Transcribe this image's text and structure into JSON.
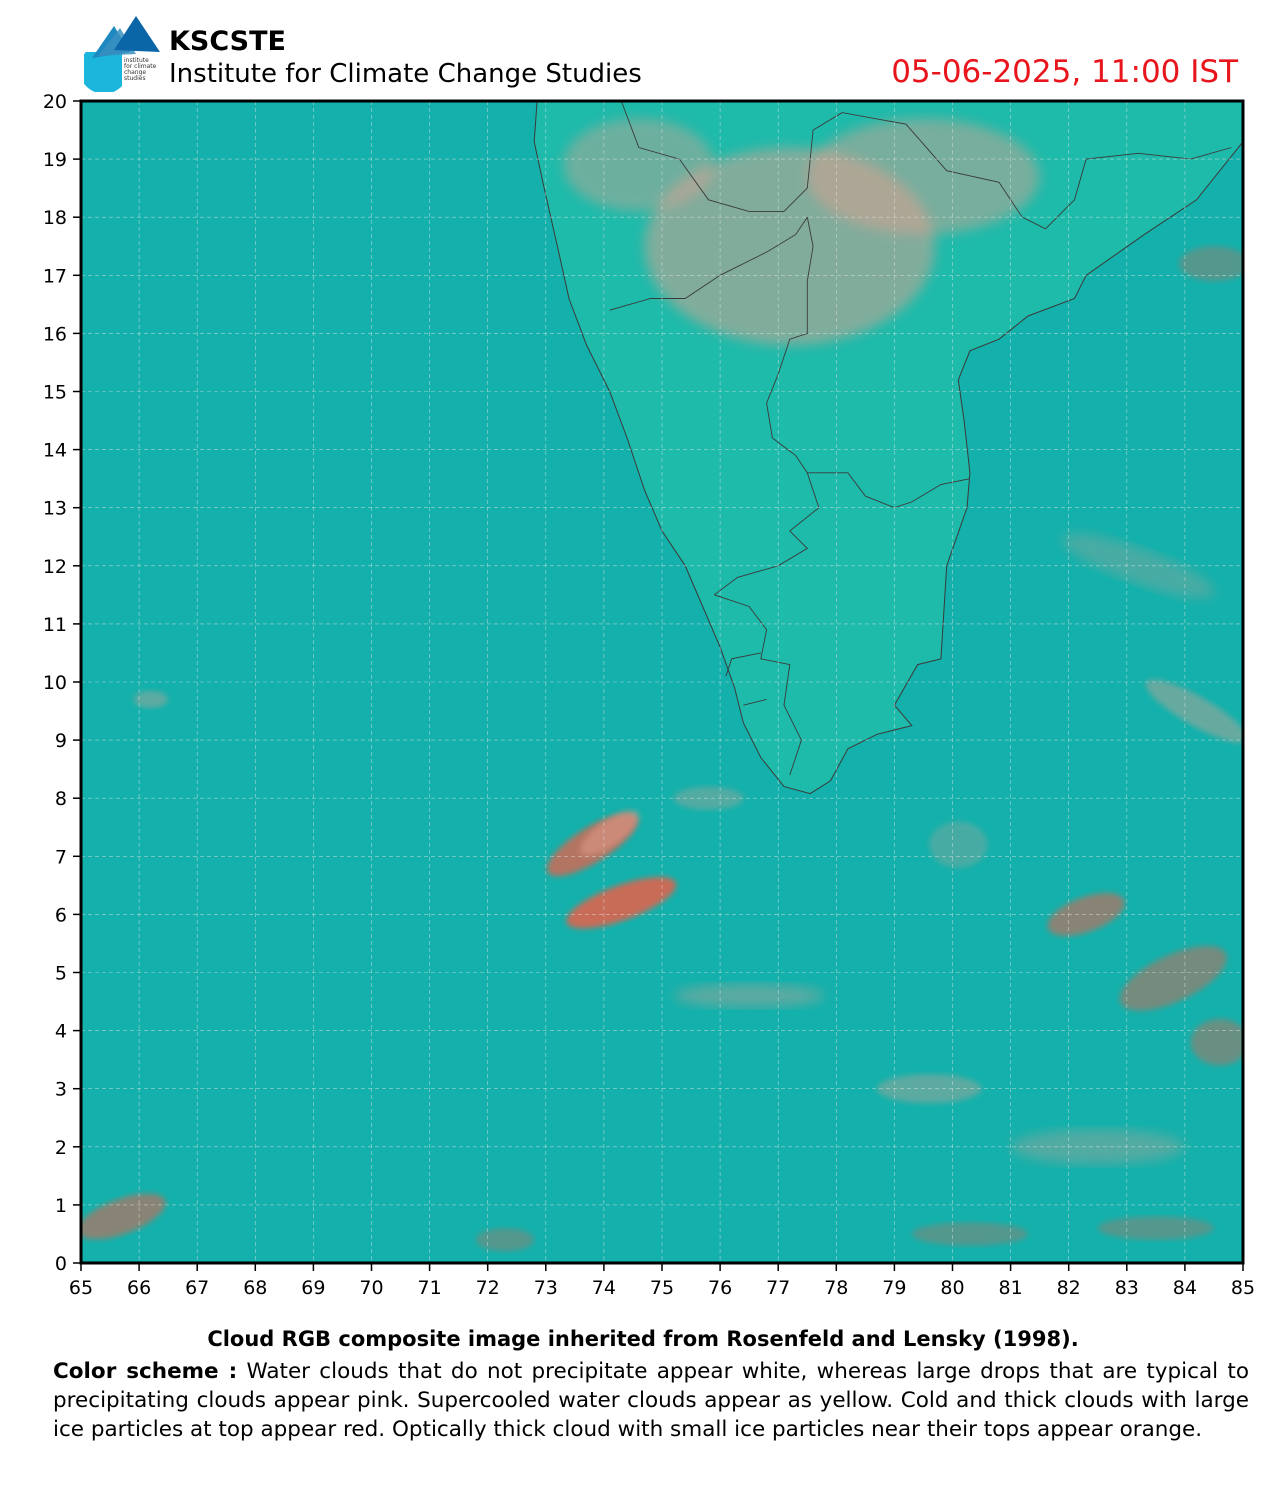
{
  "header": {
    "org_name": "KSCSTE",
    "org_sub": "Institute for Climate Change Studies",
    "logo_text": [
      "institute",
      "for climate",
      "change",
      "studies"
    ],
    "timestamp": "05-06-2025, 11:00 IST"
  },
  "map": {
    "lon_range": [
      65,
      85
    ],
    "lat_range": [
      0,
      20
    ],
    "x_ticks": [
      "65",
      "66",
      "67",
      "68",
      "69",
      "70",
      "71",
      "72",
      "73",
      "74",
      "75",
      "76",
      "77",
      "78",
      "79",
      "80",
      "81",
      "82",
      "83",
      "84",
      "85"
    ],
    "y_ticks": [
      "0",
      "1",
      "2",
      "3",
      "4",
      "5",
      "6",
      "7",
      "8",
      "9",
      "10",
      "11",
      "12",
      "13",
      "14",
      "15",
      "16",
      "17",
      "18",
      "19",
      "20"
    ],
    "grid": true,
    "colors": {
      "ocean": "#14b0ab",
      "land": "#1ebaaa",
      "pink_cloud": "#e4a08f",
      "red_cloud": "#e8604a",
      "boundary": "#3a3a3a",
      "grid": "#e6e6e6"
    },
    "clouds": [
      {
        "lon": 77.2,
        "lat": 17.5,
        "rx": 2.5,
        "ry": 1.7,
        "type": "pink",
        "opacity": 0.5
      },
      {
        "lon": 79.5,
        "lat": 18.7,
        "rx": 2.0,
        "ry": 1.0,
        "type": "pink",
        "opacity": 0.45
      },
      {
        "lon": 74.6,
        "lat": 18.9,
        "rx": 1.3,
        "ry": 0.8,
        "type": "pink",
        "opacity": 0.4
      },
      {
        "lon": 73.8,
        "lat": 7.2,
        "rx": 0.9,
        "ry": 0.3,
        "type": "red",
        "opacity": 0.75,
        "rot": 32
      },
      {
        "lon": 74.3,
        "lat": 6.2,
        "rx": 1.0,
        "ry": 0.3,
        "type": "red",
        "opacity": 0.85,
        "rot": 20
      },
      {
        "lon": 74.1,
        "lat": 7.4,
        "rx": 0.6,
        "ry": 0.22,
        "type": "pink",
        "opacity": 0.5,
        "rot": 35
      },
      {
        "lon": 82.3,
        "lat": 6.0,
        "rx": 0.7,
        "ry": 0.3,
        "type": "red",
        "opacity": 0.55,
        "rot": 20
      },
      {
        "lon": 83.8,
        "lat": 4.9,
        "rx": 1.0,
        "ry": 0.4,
        "type": "red",
        "opacity": 0.45,
        "rot": 25
      },
      {
        "lon": 84.6,
        "lat": 3.8,
        "rx": 0.5,
        "ry": 0.4,
        "type": "red",
        "opacity": 0.4
      },
      {
        "lon": 84.2,
        "lat": 9.5,
        "rx": 1.0,
        "ry": 0.25,
        "type": "pink",
        "opacity": 0.4,
        "rot": -30
      },
      {
        "lon": 83.2,
        "lat": 12.0,
        "rx": 1.4,
        "ry": 0.3,
        "type": "pink",
        "opacity": 0.25,
        "rot": -20
      },
      {
        "lon": 65.7,
        "lat": 0.8,
        "rx": 0.8,
        "ry": 0.3,
        "type": "red",
        "opacity": 0.55,
        "rot": 20
      },
      {
        "lon": 76.5,
        "lat": 4.6,
        "rx": 1.3,
        "ry": 0.2,
        "type": "pink",
        "opacity": 0.35
      },
      {
        "lon": 79.6,
        "lat": 3.0,
        "rx": 0.9,
        "ry": 0.25,
        "type": "pink",
        "opacity": 0.35
      },
      {
        "lon": 82.5,
        "lat": 2.0,
        "rx": 1.5,
        "ry": 0.3,
        "type": "pink",
        "opacity": 0.3
      },
      {
        "lon": 75.8,
        "lat": 8.0,
        "rx": 0.6,
        "ry": 0.2,
        "type": "pink",
        "opacity": 0.3
      },
      {
        "lon": 72.3,
        "lat": 0.4,
        "rx": 0.5,
        "ry": 0.2,
        "type": "red",
        "opacity": 0.3
      },
      {
        "lon": 80.3,
        "lat": 0.5,
        "rx": 1.0,
        "ry": 0.2,
        "type": "red",
        "opacity": 0.3
      },
      {
        "lon": 83.5,
        "lat": 0.6,
        "rx": 1.0,
        "ry": 0.2,
        "type": "red",
        "opacity": 0.3
      },
      {
        "lon": 84.5,
        "lat": 17.2,
        "rx": 0.6,
        "ry": 0.3,
        "type": "red",
        "opacity": 0.3
      },
      {
        "lon": 66.2,
        "lat": 9.7,
        "rx": 0.3,
        "ry": 0.15,
        "type": "pink",
        "opacity": 0.35
      },
      {
        "lon": 80.1,
        "lat": 7.2,
        "rx": 0.5,
        "ry": 0.4,
        "type": "pink",
        "opacity": 0.25
      }
    ],
    "coastline": [
      [
        72.85,
        20.0
      ],
      [
        72.8,
        19.3
      ],
      [
        72.95,
        18.6
      ],
      [
        73.2,
        17.5
      ],
      [
        73.4,
        16.6
      ],
      [
        73.7,
        15.8
      ],
      [
        74.1,
        15.0
      ],
      [
        74.4,
        14.2
      ],
      [
        74.7,
        13.3
      ],
      [
        75.0,
        12.6
      ],
      [
        75.4,
        12.0
      ],
      [
        75.7,
        11.3
      ],
      [
        76.0,
        10.6
      ],
      [
        76.25,
        9.9
      ],
      [
        76.4,
        9.3
      ],
      [
        76.7,
        8.7
      ],
      [
        77.1,
        8.2
      ],
      [
        77.55,
        8.08
      ],
      [
        77.9,
        8.3
      ],
      [
        78.2,
        8.85
      ],
      [
        78.7,
        9.1
      ],
      [
        79.3,
        9.25
      ],
      [
        79.0,
        9.6
      ],
      [
        79.4,
        10.3
      ],
      [
        79.8,
        10.4
      ],
      [
        79.85,
        11.2
      ],
      [
        79.9,
        12.0
      ],
      [
        80.25,
        13.0
      ],
      [
        80.3,
        13.6
      ],
      [
        80.2,
        14.5
      ],
      [
        80.1,
        15.2
      ],
      [
        80.3,
        15.7
      ],
      [
        80.8,
        15.9
      ],
      [
        81.3,
        16.3
      ],
      [
        82.1,
        16.6
      ],
      [
        82.3,
        17.0
      ],
      [
        83.3,
        17.7
      ],
      [
        84.2,
        18.3
      ],
      [
        85.0,
        19.3
      ]
    ],
    "boundaries": [
      [
        [
          74.3,
          20.0
        ],
        [
          74.6,
          19.2
        ],
        [
          75.3,
          19.0
        ],
        [
          75.8,
          18.3
        ],
        [
          76.5,
          18.1
        ],
        [
          77.1,
          18.1
        ],
        [
          77.5,
          18.5
        ],
        [
          77.6,
          19.5
        ],
        [
          78.1,
          19.8
        ],
        [
          79.2,
          19.6
        ],
        [
          79.9,
          18.8
        ],
        [
          80.8,
          18.6
        ],
        [
          81.2,
          18.0
        ],
        [
          81.6,
          17.8
        ],
        [
          82.1,
          18.3
        ],
        [
          82.3,
          19.0
        ],
        [
          83.2,
          19.1
        ],
        [
          84.1,
          19.0
        ],
        [
          84.8,
          19.2
        ]
      ],
      [
        [
          74.1,
          16.4
        ],
        [
          74.8,
          16.6
        ],
        [
          75.4,
          16.6
        ],
        [
          76.0,
          17.0
        ],
        [
          76.8,
          17.4
        ],
        [
          77.3,
          17.7
        ],
        [
          77.5,
          18.0
        ]
      ],
      [
        [
          77.5,
          18.0
        ],
        [
          77.6,
          17.5
        ],
        [
          77.5,
          16.9
        ],
        [
          77.5,
          16.0
        ],
        [
          77.2,
          15.9
        ],
        [
          77.0,
          15.3
        ],
        [
          76.8,
          14.8
        ],
        [
          76.9,
          14.2
        ],
        [
          77.3,
          13.9
        ],
        [
          77.5,
          13.6
        ],
        [
          78.2,
          13.6
        ],
        [
          78.5,
          13.2
        ],
        [
          79.0,
          13.0
        ],
        [
          79.3,
          13.1
        ],
        [
          79.8,
          13.4
        ],
        [
          80.3,
          13.5
        ]
      ],
      [
        [
          77.5,
          13.6
        ],
        [
          77.7,
          13.0
        ],
        [
          77.2,
          12.6
        ],
        [
          77.5,
          12.3
        ],
        [
          77.0,
          12.0
        ],
        [
          76.3,
          11.8
        ],
        [
          75.9,
          11.5
        ]
      ],
      [
        [
          75.9,
          11.5
        ],
        [
          76.5,
          11.3
        ],
        [
          76.8,
          10.9
        ],
        [
          76.7,
          10.4
        ],
        [
          77.2,
          10.3
        ],
        [
          77.1,
          9.6
        ],
        [
          77.4,
          9.0
        ],
        [
          77.2,
          8.4
        ]
      ],
      [
        [
          76.7,
          10.5
        ],
        [
          76.2,
          10.4
        ],
        [
          76.1,
          10.1
        ]
      ],
      [
        [
          76.8,
          9.7
        ],
        [
          76.4,
          9.6
        ]
      ]
    ]
  },
  "caption": "Cloud RGB composite image inherited from Rosenfeld and Lensky (1998).",
  "scheme": {
    "label": "Color scheme :",
    "text": " Water clouds that do not precipitate appear white, whereas large drops that are typical to precipitating clouds appear pink. Supercooled water clouds appear as yellow. Cold and thick clouds with large ice particles at top appear red. Optically thick cloud with small ice particles near their tops appear orange."
  }
}
